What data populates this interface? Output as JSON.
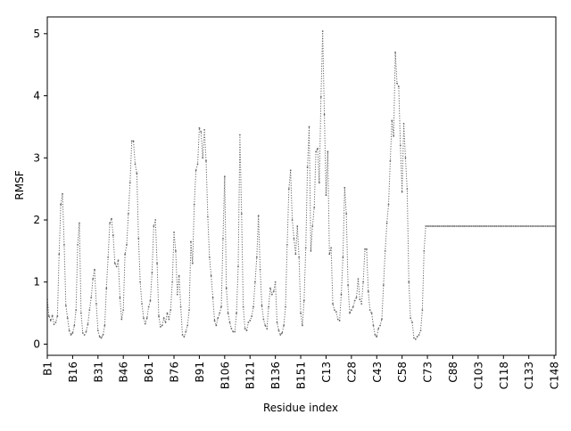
{
  "chart_data": {
    "type": "line",
    "title": "",
    "xlabel": "Residue index",
    "ylabel": "RMSF",
    "ylim": [
      -0.18,
      5.27
    ],
    "yticks": [
      0,
      1,
      2,
      3,
      4,
      5
    ],
    "x_count": 302,
    "x_tick_labels": [
      "B1",
      "B16",
      "B31",
      "B46",
      "B61",
      "B76",
      "B91",
      "B106",
      "B121",
      "B136",
      "B151",
      "C13",
      "C28",
      "C43",
      "C58",
      "C73",
      "C88",
      "C103",
      "C118",
      "C133",
      "C148"
    ],
    "x_tick_step": 15,
    "grid": false,
    "legend": "none",
    "series": [
      {
        "name": "",
        "color": "#666666",
        "line_style": "dotted",
        "marker": "point",
        "anchors": [
          [
            0,
            0.72
          ],
          [
            1,
            0.45
          ],
          [
            2,
            0.38
          ],
          [
            3,
            0.46
          ],
          [
            4,
            0.32
          ],
          [
            5,
            0.35
          ],
          [
            6,
            0.45
          ],
          [
            7,
            1.45
          ],
          [
            8,
            2.25
          ],
          [
            9,
            2.42
          ],
          [
            10,
            1.6
          ],
          [
            11,
            0.62
          ],
          [
            12,
            0.42
          ],
          [
            13,
            0.22
          ],
          [
            14,
            0.15
          ],
          [
            15,
            0.18
          ],
          [
            16,
            0.3
          ],
          [
            17,
            0.55
          ],
          [
            18,
            1.6
          ],
          [
            19,
            1.95
          ],
          [
            20,
            0.5
          ],
          [
            21,
            0.18
          ],
          [
            22,
            0.15
          ],
          [
            23,
            0.2
          ],
          [
            24,
            0.32
          ],
          [
            25,
            0.55
          ],
          [
            26,
            0.75
          ],
          [
            27,
            1.05
          ],
          [
            28,
            1.2
          ],
          [
            29,
            0.65
          ],
          [
            30,
            0.22
          ],
          [
            31,
            0.12
          ],
          [
            32,
            0.1
          ],
          [
            33,
            0.15
          ],
          [
            34,
            0.3
          ],
          [
            35,
            0.9
          ],
          [
            36,
            1.4
          ],
          [
            37,
            1.95
          ],
          [
            38,
            2.02
          ],
          [
            39,
            1.75
          ],
          [
            40,
            1.3
          ],
          [
            41,
            1.25
          ],
          [
            42,
            1.35
          ],
          [
            43,
            0.75
          ],
          [
            44,
            0.4
          ],
          [
            45,
            0.55
          ],
          [
            46,
            1.45
          ],
          [
            47,
            1.6
          ],
          [
            48,
            2.1
          ],
          [
            49,
            2.6
          ],
          [
            50,
            3.27
          ],
          [
            51,
            3.27
          ],
          [
            52,
            2.9
          ],
          [
            53,
            2.75
          ],
          [
            54,
            1.7
          ],
          [
            55,
            1.0
          ],
          [
            56,
            0.65
          ],
          [
            57,
            0.42
          ],
          [
            58,
            0.33
          ],
          [
            59,
            0.42
          ],
          [
            60,
            0.6
          ],
          [
            61,
            0.7
          ],
          [
            62,
            1.15
          ],
          [
            63,
            1.9
          ],
          [
            64,
            2.0
          ],
          [
            65,
            1.3
          ],
          [
            66,
            0.45
          ],
          [
            67,
            0.28
          ],
          [
            68,
            0.3
          ],
          [
            69,
            0.42
          ],
          [
            70,
            0.35
          ],
          [
            71,
            0.5
          ],
          [
            72,
            0.4
          ],
          [
            73,
            0.55
          ],
          [
            74,
            1.0
          ],
          [
            75,
            1.8
          ],
          [
            76,
            1.5
          ],
          [
            77,
            0.8
          ],
          [
            78,
            1.1
          ],
          [
            79,
            0.6
          ],
          [
            80,
            0.15
          ],
          [
            81,
            0.12
          ],
          [
            82,
            0.2
          ],
          [
            83,
            0.3
          ],
          [
            84,
            0.55
          ],
          [
            85,
            1.65
          ],
          [
            86,
            1.3
          ],
          [
            87,
            2.25
          ],
          [
            88,
            2.8
          ],
          [
            89,
            2.9
          ],
          [
            90,
            3.48
          ],
          [
            91,
            3.42
          ],
          [
            92,
            3.0
          ],
          [
            93,
            3.45
          ],
          [
            94,
            2.95
          ],
          [
            95,
            2.05
          ],
          [
            96,
            1.4
          ],
          [
            97,
            1.1
          ],
          [
            98,
            0.75
          ],
          [
            99,
            0.38
          ],
          [
            100,
            0.3
          ],
          [
            101,
            0.42
          ],
          [
            102,
            0.5
          ],
          [
            103,
            0.6
          ],
          [
            104,
            1.7
          ],
          [
            105,
            2.7
          ],
          [
            106,
            0.9
          ],
          [
            107,
            0.5
          ],
          [
            108,
            0.35
          ],
          [
            109,
            0.25
          ],
          [
            110,
            0.2
          ],
          [
            111,
            0.2
          ],
          [
            112,
            0.5
          ],
          [
            113,
            1.25
          ],
          [
            114,
            3.37
          ],
          [
            115,
            2.1
          ],
          [
            116,
            0.6
          ],
          [
            117,
            0.25
          ],
          [
            118,
            0.22
          ],
          [
            119,
            0.35
          ],
          [
            120,
            0.38
          ],
          [
            121,
            0.45
          ],
          [
            122,
            0.6
          ],
          [
            123,
            1.0
          ],
          [
            124,
            1.4
          ],
          [
            125,
            2.07
          ],
          [
            126,
            1.2
          ],
          [
            127,
            0.62
          ],
          [
            128,
            0.4
          ],
          [
            129,
            0.3
          ],
          [
            130,
            0.25
          ],
          [
            131,
            0.6
          ],
          [
            132,
            0.9
          ],
          [
            133,
            0.8
          ],
          [
            134,
            0.85
          ],
          [
            135,
            1.0
          ],
          [
            136,
            0.35
          ],
          [
            137,
            0.22
          ],
          [
            138,
            0.15
          ],
          [
            139,
            0.18
          ],
          [
            140,
            0.3
          ],
          [
            141,
            0.6
          ],
          [
            142,
            1.6
          ],
          [
            143,
            2.5
          ],
          [
            144,
            2.8
          ],
          [
            145,
            2.0
          ],
          [
            146,
            1.7
          ],
          [
            147,
            1.45
          ],
          [
            148,
            1.9
          ],
          [
            149,
            1.4
          ],
          [
            150,
            0.5
          ],
          [
            151,
            0.3
          ],
          [
            152,
            0.7
          ],
          [
            153,
            1.55
          ],
          [
            154,
            2.85
          ],
          [
            155,
            3.5
          ],
          [
            156,
            1.5
          ],
          [
            157,
            1.9
          ],
          [
            158,
            2.2
          ],
          [
            159,
            3.1
          ],
          [
            160,
            3.15
          ],
          [
            161,
            2.6
          ],
          [
            162,
            3.98
          ],
          [
            163,
            5.04
          ],
          [
            164,
            3.7
          ],
          [
            165,
            2.4
          ],
          [
            166,
            3.1
          ],
          [
            167,
            1.45
          ],
          [
            168,
            1.55
          ],
          [
            169,
            0.65
          ],
          [
            170,
            0.55
          ],
          [
            171,
            0.52
          ],
          [
            172,
            0.4
          ],
          [
            173,
            0.38
          ],
          [
            174,
            0.8
          ],
          [
            175,
            1.4
          ],
          [
            176,
            2.52
          ],
          [
            177,
            2.1
          ],
          [
            178,
            0.95
          ],
          [
            179,
            0.5
          ],
          [
            180,
            0.55
          ],
          [
            181,
            0.6
          ],
          [
            182,
            0.7
          ],
          [
            183,
            0.75
          ],
          [
            184,
            1.05
          ],
          [
            185,
            0.72
          ],
          [
            186,
            0.65
          ],
          [
            187,
            1.0
          ],
          [
            188,
            1.53
          ],
          [
            189,
            1.53
          ],
          [
            190,
            0.85
          ],
          [
            191,
            0.55
          ],
          [
            192,
            0.5
          ],
          [
            193,
            0.3
          ],
          [
            194,
            0.15
          ],
          [
            195,
            0.12
          ],
          [
            196,
            0.25
          ],
          [
            197,
            0.3
          ],
          [
            198,
            0.4
          ],
          [
            199,
            0.95
          ],
          [
            200,
            1.5
          ],
          [
            201,
            1.95
          ],
          [
            202,
            2.25
          ],
          [
            203,
            2.95
          ],
          [
            204,
            3.6
          ],
          [
            205,
            3.35
          ],
          [
            206,
            4.7
          ],
          [
            207,
            4.2
          ],
          [
            208,
            4.15
          ],
          [
            209,
            3.2
          ],
          [
            210,
            2.45
          ],
          [
            211,
            3.55
          ],
          [
            212,
            3.0
          ],
          [
            213,
            2.5
          ],
          [
            214,
            1.0
          ],
          [
            215,
            0.42
          ],
          [
            216,
            0.35
          ],
          [
            217,
            0.1
          ],
          [
            218,
            0.08
          ],
          [
            219,
            0.12
          ],
          [
            220,
            0.15
          ],
          [
            221,
            0.22
          ],
          [
            222,
            0.55
          ],
          [
            223,
            1.5
          ],
          [
            224,
            1.9
          ]
        ]
      }
    ]
  }
}
